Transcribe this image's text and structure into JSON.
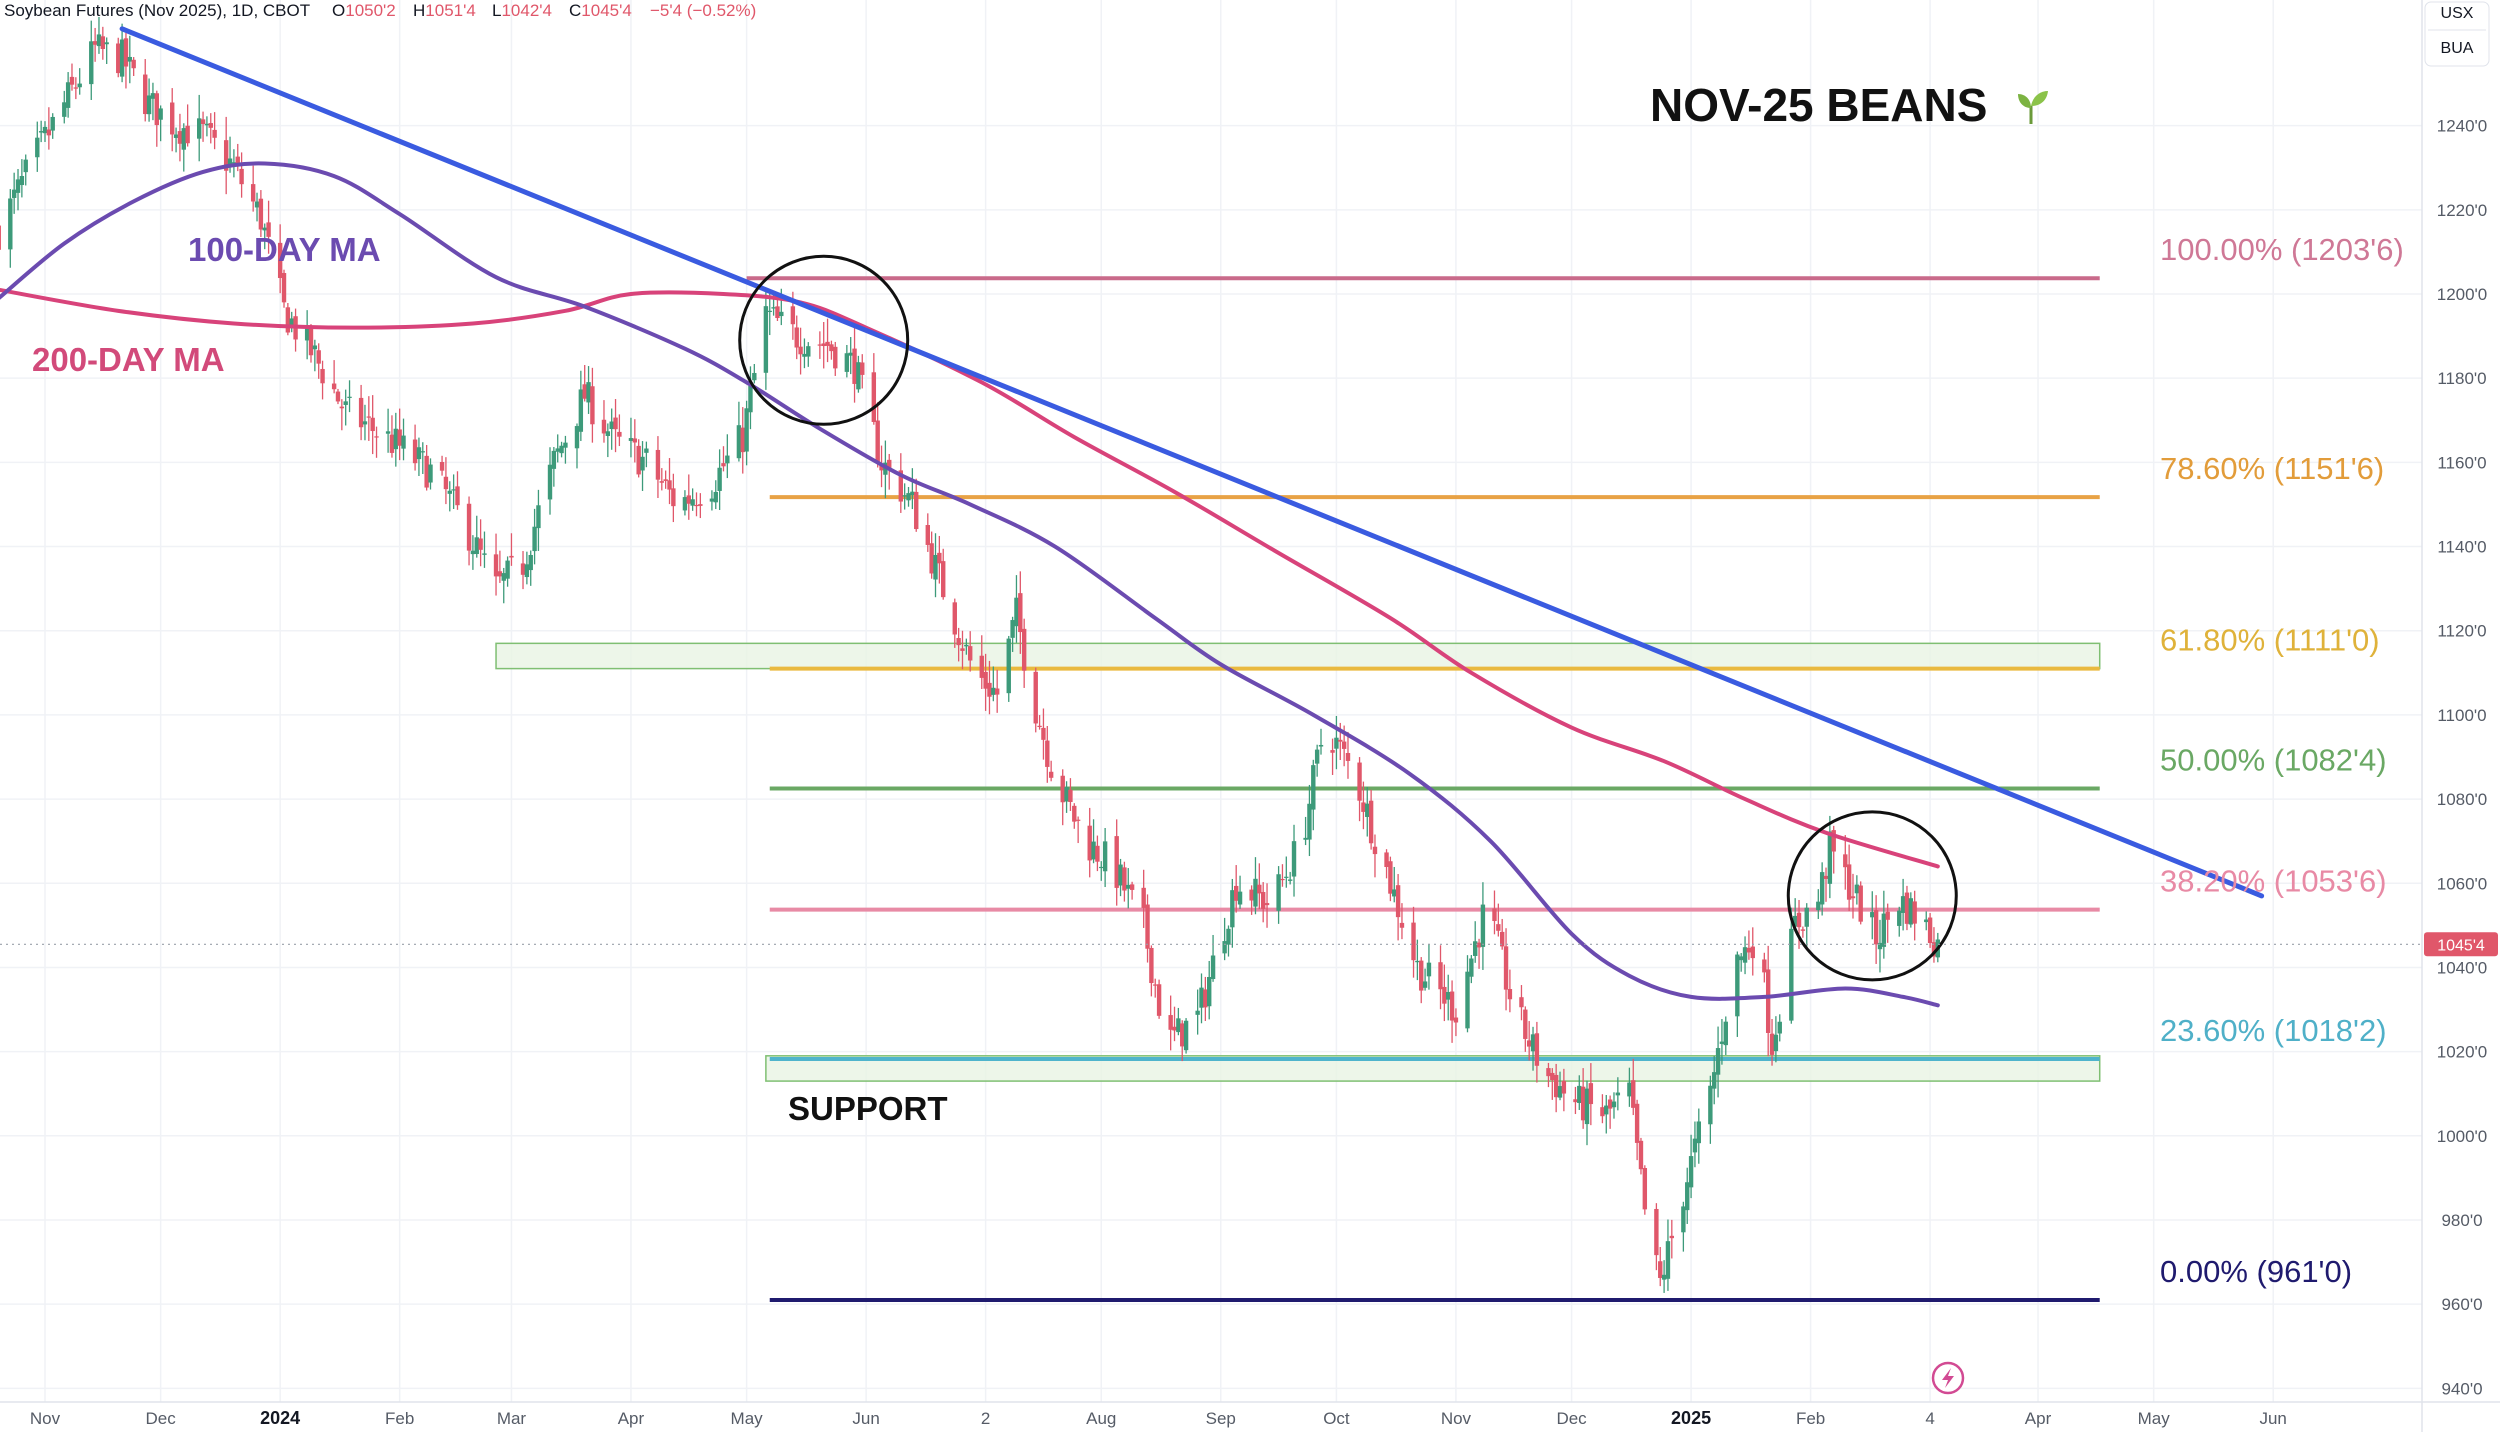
{
  "header": {
    "symbol": "Soybean Futures (Nov 2025), 1D, CBOT",
    "open_label": "O",
    "open": "1050'2",
    "high_label": "H",
    "high": "1051'4",
    "low_label": "L",
    "low": "1042'4",
    "close_label": "C",
    "close": "1045'4",
    "change": "−5'4 (−0.52%)"
  },
  "badges": {
    "currency": "USX",
    "unit": "BUA"
  },
  "title": "NOV-25 BEANS",
  "title_icon": "seedling-icon",
  "colors": {
    "up": "#3d9a7a",
    "down": "#e0576a",
    "trendline": "#3a5be0",
    "ma100": "#6b4bb0",
    "ma200": "#d8437a",
    "fib100": "#c96a8a",
    "fib786": "#e8a245",
    "fib618": "#e9b93f",
    "fib50": "#6aa864",
    "fib382": "#e88aa5",
    "fib236": "#4fb4cc",
    "fib0": "#1f1a6e",
    "zone_fill": "#e9f4e4",
    "zone_stroke": "#7fbf72",
    "last_price": "#e0576a"
  },
  "last_price_tag": "1045'4",
  "chart_data": {
    "type": "candlestick",
    "title": "NOV-25 BEANS",
    "ylim": [
      932,
      1264
    ],
    "y_ticks": [
      {
        "v": 940,
        "label": "940'0"
      },
      {
        "v": 960,
        "label": "960'0"
      },
      {
        "v": 980,
        "label": "980'0"
      },
      {
        "v": 1000,
        "label": "1000'0"
      },
      {
        "v": 1020,
        "label": "1020'0"
      },
      {
        "v": 1040,
        "label": "1040'0"
      },
      {
        "v": 1060,
        "label": "1060'0"
      },
      {
        "v": 1080,
        "label": "1080'0"
      },
      {
        "v": 1100,
        "label": "1100'0"
      },
      {
        "v": 1120,
        "label": "1120'0"
      },
      {
        "v": 1140,
        "label": "1140'0"
      },
      {
        "v": 1160,
        "label": "1160'0"
      },
      {
        "v": 1180,
        "label": "1180'0"
      },
      {
        "v": 1200,
        "label": "1200'0"
      },
      {
        "v": 1220,
        "label": "1220'0"
      },
      {
        "v": 1240,
        "label": "1240'0"
      }
    ],
    "x_ticks": [
      {
        "label": "Nov",
        "date": "2023-11-01",
        "bold": false
      },
      {
        "label": "Dec",
        "date": "2023-12-01",
        "bold": false
      },
      {
        "label": "2024",
        "date": "2024-01-01",
        "bold": true
      },
      {
        "label": "Feb",
        "date": "2024-02-01",
        "bold": false
      },
      {
        "label": "Mar",
        "date": "2024-03-01",
        "bold": false
      },
      {
        "label": "Apr",
        "date": "2024-04-01",
        "bold": false
      },
      {
        "label": "May",
        "date": "2024-05-01",
        "bold": false
      },
      {
        "label": "Jun",
        "date": "2024-06-01",
        "bold": false
      },
      {
        "label": "2",
        "date": "2024-07-02",
        "bold": false
      },
      {
        "label": "Aug",
        "date": "2024-08-01",
        "bold": false
      },
      {
        "label": "Sep",
        "date": "2024-09-01",
        "bold": false
      },
      {
        "label": "Oct",
        "date": "2024-10-01",
        "bold": false
      },
      {
        "label": "Nov",
        "date": "2024-11-01",
        "bold": false
      },
      {
        "label": "Dec",
        "date": "2024-12-01",
        "bold": false
      },
      {
        "label": "2025",
        "date": "2025-01-01",
        "bold": true
      },
      {
        "label": "Feb",
        "date": "2025-02-01",
        "bold": false
      },
      {
        "label": "4",
        "date": "2025-03-04",
        "bold": false
      },
      {
        "label": "Apr",
        "date": "2025-04-01",
        "bold": false
      },
      {
        "label": "May",
        "date": "2025-05-01",
        "bold": false
      },
      {
        "label": "Jun",
        "date": "2025-06-01",
        "bold": false
      }
    ],
    "fib_levels": [
      {
        "label": "100.00% (1203'6)",
        "value": 1203.75,
        "color_key": "fib100",
        "start": "2024-05-01",
        "end": "2025-04-17"
      },
      {
        "label": "78.60% (1151'6)",
        "value": 1151.75,
        "color_key": "fib786",
        "start": "2024-05-07",
        "end": "2025-04-17"
      },
      {
        "label": "61.80% (1111'0)",
        "value": 1111.0,
        "color_key": "fib618",
        "start": "2024-05-07",
        "end": "2025-04-17"
      },
      {
        "label": "50.00% (1082'4)",
        "value": 1082.5,
        "color_key": "fib50",
        "start": "2024-05-07",
        "end": "2025-04-17"
      },
      {
        "label": "38.20% (1053'6)",
        "value": 1053.75,
        "color_key": "fib382",
        "start": "2024-05-07",
        "end": "2025-04-17"
      },
      {
        "label": "23.60% (1018'2)",
        "value": 1018.25,
        "color_key": "fib236",
        "start": "2024-05-07",
        "end": "2025-04-17"
      },
      {
        "label": "0.00% (961'0)",
        "value": 961.0,
        "color_key": "fib0",
        "start": "2024-05-07",
        "end": "2025-04-17"
      }
    ],
    "zones": [
      {
        "start": "2024-02-26",
        "end": "2025-04-17",
        "low": 1111,
        "high": 1117
      },
      {
        "start": "2024-05-06",
        "end": "2025-04-17",
        "low": 1013,
        "high": 1019
      }
    ],
    "support_label": "SUPPORT",
    "trendline": {
      "start": {
        "date": "2023-11-21",
        "value": 1263
      },
      "end": {
        "date": "2025-05-29",
        "value": 1057
      }
    },
    "ma_labels": {
      "ma100": "100-DAY MA",
      "ma200": "200-DAY MA"
    },
    "ma100": [
      [
        "2023-10-20",
        1199
      ],
      [
        "2023-11-06",
        1212
      ],
      [
        "2023-11-24",
        1222
      ],
      [
        "2023-12-12",
        1229
      ],
      [
        "2023-12-28",
        1231
      ],
      [
        "2024-01-15",
        1228
      ],
      [
        "2024-02-01",
        1219
      ],
      [
        "2024-02-26",
        1204
      ],
      [
        "2024-03-20",
        1197
      ],
      [
        "2024-04-15",
        1187
      ],
      [
        "2024-05-01",
        1179
      ],
      [
        "2024-05-20",
        1168
      ],
      [
        "2024-06-10",
        1157
      ],
      [
        "2024-06-28",
        1150
      ],
      [
        "2024-07-20",
        1140
      ],
      [
        "2024-08-15",
        1123
      ],
      [
        "2024-09-01",
        1112
      ],
      [
        "2024-09-25",
        1100
      ],
      [
        "2024-10-20",
        1086
      ],
      [
        "2024-11-10",
        1070
      ],
      [
        "2024-12-01",
        1048
      ],
      [
        "2024-12-16",
        1038
      ],
      [
        "2025-01-01",
        1033
      ],
      [
        "2025-01-20",
        1033
      ],
      [
        "2025-02-10",
        1035
      ],
      [
        "2025-02-25",
        1033
      ],
      [
        "2025-03-06",
        1031
      ]
    ],
    "ma200": [
      [
        "2023-10-20",
        1201
      ],
      [
        "2023-11-20",
        1196
      ],
      [
        "2023-12-20",
        1193
      ],
      [
        "2024-01-20",
        1192
      ],
      [
        "2024-02-20",
        1193
      ],
      [
        "2024-03-15",
        1196
      ],
      [
        "2024-04-01",
        1200
      ],
      [
        "2024-04-25",
        1200
      ],
      [
        "2024-05-15",
        1198
      ],
      [
        "2024-06-01",
        1192
      ],
      [
        "2024-07-01",
        1179
      ],
      [
        "2024-07-25",
        1166
      ],
      [
        "2024-08-20",
        1153
      ],
      [
        "2024-09-15",
        1139
      ],
      [
        "2024-10-15",
        1123
      ],
      [
        "2024-11-05",
        1110
      ],
      [
        "2024-12-01",
        1097
      ],
      [
        "2024-12-25",
        1089
      ],
      [
        "2025-01-15",
        1080
      ],
      [
        "2025-02-05",
        1072
      ],
      [
        "2025-03-06",
        1064
      ]
    ],
    "price_path": [
      [
        "2023-10-20",
        1215
      ],
      [
        "2023-10-28",
        1230
      ],
      [
        "2023-11-06",
        1245
      ],
      [
        "2023-11-14",
        1258
      ],
      [
        "2023-11-21",
        1256
      ],
      [
        "2023-11-28",
        1245
      ],
      [
        "2023-12-05",
        1240
      ],
      [
        "2023-12-12",
        1238
      ],
      [
        "2023-12-20",
        1230
      ],
      [
        "2023-12-27",
        1218
      ],
      [
        "2024-01-02",
        1196
      ],
      [
        "2024-01-10",
        1185
      ],
      [
        "2024-01-18",
        1172
      ],
      [
        "2024-01-25",
        1168
      ],
      [
        "2024-02-02",
        1163
      ],
      [
        "2024-02-10",
        1157
      ],
      [
        "2024-02-18",
        1145
      ],
      [
        "2024-02-26",
        1130
      ],
      [
        "2024-03-04",
        1136
      ],
      [
        "2024-03-12",
        1160
      ],
      [
        "2024-03-20",
        1176
      ],
      [
        "2024-03-28",
        1165
      ],
      [
        "2024-04-05",
        1160
      ],
      [
        "2024-04-13",
        1150
      ],
      [
        "2024-04-22",
        1155
      ],
      [
        "2024-04-30",
        1166
      ],
      [
        "2024-05-06",
        1195
      ],
      [
        "2024-05-14",
        1190
      ],
      [
        "2024-05-22",
        1188
      ],
      [
        "2024-05-29",
        1183
      ],
      [
        "2024-06-05",
        1160
      ],
      [
        "2024-06-13",
        1150
      ],
      [
        "2024-06-21",
        1130
      ],
      [
        "2024-06-29",
        1110
      ],
      [
        "2024-07-05",
        1105
      ],
      [
        "2024-07-10",
        1124
      ],
      [
        "2024-07-14",
        1105
      ],
      [
        "2024-07-20",
        1085
      ],
      [
        "2024-07-28",
        1070
      ],
      [
        "2024-08-04",
        1064
      ],
      [
        "2024-08-12",
        1050
      ],
      [
        "2024-08-18",
        1022
      ],
      [
        "2024-08-26",
        1028
      ],
      [
        "2024-09-05",
        1060
      ],
      [
        "2024-09-14",
        1055
      ],
      [
        "2024-09-22",
        1070
      ],
      [
        "2024-09-28",
        1098
      ],
      [
        "2024-10-06",
        1085
      ],
      [
        "2024-10-14",
        1063
      ],
      [
        "2024-10-22",
        1040
      ],
      [
        "2024-11-01",
        1030
      ],
      [
        "2024-11-09",
        1055
      ],
      [
        "2024-11-16",
        1030
      ],
      [
        "2024-11-24",
        1015
      ],
      [
        "2024-12-02",
        1008
      ],
      [
        "2024-12-10",
        1005
      ],
      [
        "2024-12-16",
        1010
      ],
      [
        "2024-12-21",
        975
      ],
      [
        "2024-12-24",
        965
      ],
      [
        "2024-12-31",
        990
      ],
      [
        "2025-01-06",
        1010
      ],
      [
        "2025-01-12",
        1040
      ],
      [
        "2025-01-18",
        1048
      ],
      [
        "2025-01-22",
        1022
      ],
      [
        "2025-01-28",
        1050
      ],
      [
        "2025-02-03",
        1056
      ],
      [
        "2025-02-06",
        1068
      ],
      [
        "2025-02-12",
        1058
      ],
      [
        "2025-02-18",
        1047
      ],
      [
        "2025-02-24",
        1056
      ],
      [
        "2025-03-01",
        1052
      ],
      [
        "2025-03-06",
        1045.5
      ]
    ],
    "circles": [
      {
        "date": "2024-05-21",
        "value": 1189
      },
      {
        "date": "2025-02-17",
        "value": 1057
      }
    ]
  }
}
